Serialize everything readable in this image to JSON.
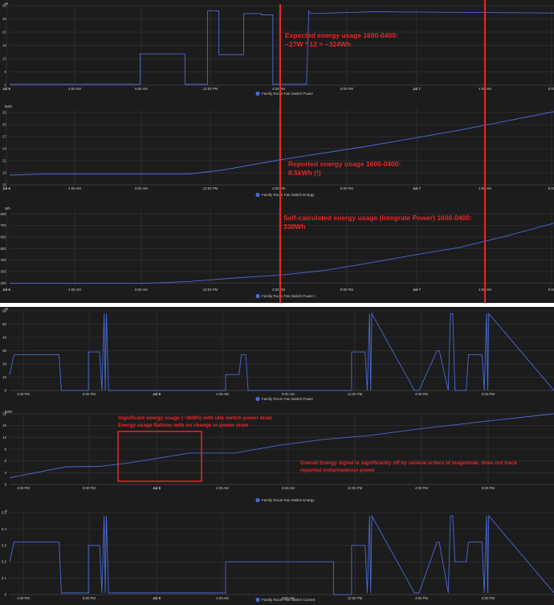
{
  "colors": {
    "background": "#1c1c1c",
    "series": "#4a6ad8",
    "annotation": "#e8262a",
    "separator": "#ffffff",
    "text": "#c9c9c9"
  },
  "top_x_ticks": [
    "Jul 6",
    "4:00 AM",
    "8:00 AM",
    "12:00 PM",
    "4:00 PM",
    "8:00 PM",
    "Jul 7",
    "4:00 AM",
    "8:00"
  ],
  "bottom_x_ticks": [
    "4:00 PM",
    "8:00 PM",
    "Jul 8",
    "4:00 AM",
    "8:00 AM",
    "12:00 PM",
    "4:00 PM",
    "8:00 PM"
  ],
  "chart_data": [
    {
      "id": "c1",
      "type": "line",
      "unit": "W",
      "x_range": [
        0,
        24.2
      ],
      "y_ticks": [
        0,
        5,
        10,
        15,
        20,
        25,
        30
      ],
      "ylim": [
        0,
        30
      ],
      "legend": "Family Room Fan Switch Power",
      "series": [
        {
          "x": [
            0,
            5.8,
            5.8,
            7.8,
            7.8,
            8.8,
            8.8,
            9.3,
            9.3,
            10.4,
            10.4,
            11.2,
            11.2,
            11.7,
            11.7,
            13.2,
            13.3,
            13.4,
            13.4,
            16.2,
            24.2
          ],
          "y": [
            0.3,
            0.3,
            11.8,
            11.8,
            0.3,
            0.3,
            28,
            28,
            11.5,
            11.5,
            27,
            27,
            26.5,
            26.5,
            0.3,
            0.3,
            28,
            27,
            27,
            27.7,
            27.2
          ]
        }
      ]
    },
    {
      "id": "c2",
      "type": "line",
      "unit": "kWh",
      "x_range": [
        0,
        24.2
      ],
      "y_ticks": [
        15,
        18,
        21,
        24,
        27,
        30,
        33
      ],
      "ylim": [
        15,
        34
      ],
      "legend": "Family Room Fan Switch Energy",
      "series": [
        {
          "x": [
            0,
            1.5,
            8,
            9.5,
            12,
            16,
            20,
            24.2
          ],
          "y": [
            17.4,
            17.7,
            17.7,
            18.7,
            21.2,
            24.7,
            28.6,
            33.2
          ]
        }
      ]
    },
    {
      "id": "c3",
      "type": "line",
      "unit": "Wh",
      "x_range": [
        0,
        24.2
      ],
      "y_ticks": [
        200,
        300,
        400,
        500,
        600,
        700,
        800
      ],
      "ylim": [
        175,
        830
      ],
      "legend": "Family Room Fan Switch Power I",
      "series": [
        {
          "x": [
            0,
            6,
            8,
            10,
            12,
            14,
            16,
            18,
            20,
            22,
            24.2
          ],
          "y": [
            198,
            198,
            215,
            245,
            270,
            310,
            375,
            445,
            510,
            605,
            720
          ]
        }
      ]
    },
    {
      "id": "c4",
      "type": "line",
      "unit": "W",
      "x_range": [
        0,
        24.2
      ],
      "y_ticks": [
        0,
        10,
        20,
        30,
        40,
        50,
        60
      ],
      "ylim": [
        0,
        60
      ],
      "legend": "Family Room Fan Switch Power",
      "series": [
        {
          "x": [
            0,
            0.2,
            0.3,
            1.0,
            1.2,
            2.2,
            2.3,
            3.5,
            3.5,
            4.0,
            4.1,
            4.2,
            4.25,
            4.3,
            4.4,
            5.1,
            5.2,
            9.6,
            9.6,
            10.2,
            10.3,
            10.4,
            10.5,
            10.6,
            14.4,
            14.4,
            15.2,
            15.2,
            15.8,
            15.9,
            16.0,
            16.05,
            16.1,
            18.0,
            18.2,
            19.0,
            19.1,
            19.5,
            19.6,
            19.7,
            19.8,
            20.3,
            20.4,
            21.0,
            21.1,
            21.2,
            21.25,
            21.3,
            24.2
          ],
          "y": [
            12,
            27,
            27,
            27,
            27,
            27,
            0,
            0,
            29,
            29,
            0,
            58,
            0,
            58,
            0,
            0,
            0,
            0,
            12,
            12,
            27,
            27,
            27,
            0,
            0,
            0,
            0,
            29,
            29,
            0,
            58,
            0,
            58,
            0,
            0,
            30,
            30,
            0,
            58,
            58,
            0,
            0,
            27,
            27,
            0,
            58,
            0,
            58,
            0
          ]
        }
      ]
    },
    {
      "id": "c5",
      "type": "line",
      "unit": "kWh",
      "x_range": [
        0,
        24.2
      ],
      "y_ticks": [
        0,
        3,
        6,
        9,
        12,
        15,
        18
      ],
      "ylim": [
        0,
        18
      ],
      "legend": "Family Room Fan Switch Energy",
      "series": [
        {
          "x": [
            0,
            2.5,
            4,
            5.2,
            8,
            10,
            12,
            14,
            16,
            18,
            21,
            24.2
          ],
          "y": [
            1.7,
            4.5,
            4.6,
            5.4,
            8.0,
            8.0,
            10.0,
            11.5,
            12.5,
            14.0,
            16.0,
            18.0
          ]
        }
      ]
    },
    {
      "id": "c6",
      "type": "line",
      "unit": "A",
      "x_range": [
        0,
        24.2
      ],
      "y_ticks": [
        0,
        0.1,
        0.2,
        0.3,
        0.4,
        0.5
      ],
      "ylim": [
        0,
        0.5
      ],
      "legend": "Family Room Fan Switch Current",
      "series": [
        {
          "x": [
            0,
            0.2,
            0.3,
            1.0,
            1.1,
            2.2,
            2.3,
            3.5,
            3.5,
            4.0,
            4.1,
            4.2,
            4.25,
            4.3,
            4.4,
            9.6,
            9.6,
            10.2,
            10.3,
            10.4,
            14.4,
            14.4,
            15.2,
            15.2,
            15.8,
            15.9,
            16.0,
            16.05,
            16.1,
            18.0,
            18.2,
            19.0,
            19.1,
            19.5,
            19.6,
            19.7,
            19.8,
            20.3,
            20.4,
            21.0,
            21.1,
            21.2,
            21.25,
            21.3,
            24.2
          ],
          "y": [
            0.2,
            0.32,
            0.32,
            0.32,
            0.32,
            0.32,
            0.01,
            0.01,
            0.3,
            0.3,
            0.01,
            0.48,
            0.01,
            0.48,
            0.01,
            0.01,
            0.2,
            0.2,
            0.2,
            0.2,
            0.2,
            0,
            0,
            0.3,
            0.3,
            0.01,
            0.48,
            0.01,
            0.48,
            0.01,
            0.01,
            0.32,
            0.32,
            0.01,
            0.48,
            0.48,
            0.2,
            0.2,
            0.32,
            0.32,
            0.01,
            0.48,
            0.01,
            0.48,
            0.01
          ]
        }
      ]
    }
  ],
  "annotations": {
    "a1_line1": "Expected energy usage 1600-0400:",
    "a1_line2": "~27W * 12 = ~324Wh",
    "a2_line1": "Reported energy usage 1600-0400:",
    "a2_line2": "8.5kWh (!)",
    "a3_line1": "Self-calculated energy usage (integrate Power) 1600-0400:",
    "a3_line2": "330Wh",
    "a4_line1": "Significant energy usage (~3kWh) with idle switch power draw",
    "a4_line2": "Energy usage flattens with no change in power draw",
    "a5_line1": "Overall Energy signal is significantly off by several orders of magnitude, does not track",
    "a5_line2": "reported instantaneous power"
  }
}
